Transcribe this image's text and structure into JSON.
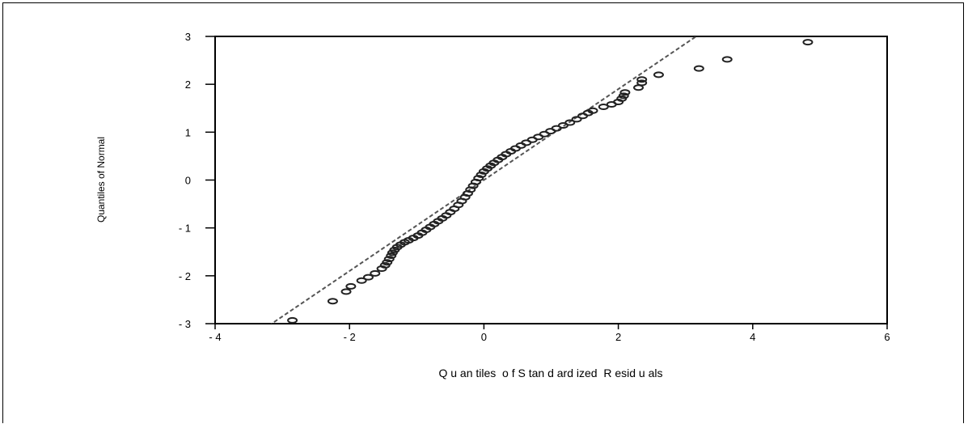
{
  "chart_data": {
    "type": "scatter",
    "title": "",
    "xlabel": "Q u an tiles  o f S tan d ard ized  R esid u als",
    "ylabel": "Quantiles of Normal",
    "xlim": [
      -4,
      6
    ],
    "ylim": [
      -3,
      3
    ],
    "x_ticks": [
      -4,
      -2,
      0,
      2,
      4,
      6
    ],
    "x_tick_labels": [
      "- 4",
      "- 2",
      "0",
      "2",
      "4",
      "6"
    ],
    "y_ticks": [
      -3,
      -2,
      -1,
      0,
      1,
      2,
      3
    ],
    "y_tick_labels": [
      "- 3",
      "- 2",
      "- 1",
      "0",
      "1",
      "2",
      "3"
    ],
    "grid": false,
    "legend": "none",
    "point_color": "#222222",
    "line_color": "#555555",
    "reference_line": {
      "slope": 0.95,
      "intercept": 0.0,
      "style": "dashed"
    },
    "points": [
      [
        -2.85,
        -2.93
      ],
      [
        -2.25,
        -2.53
      ],
      [
        -2.05,
        -2.33
      ],
      [
        -1.98,
        -2.22
      ],
      [
        -1.82,
        -2.1
      ],
      [
        -1.72,
        -2.03
      ],
      [
        -1.62,
        -1.95
      ],
      [
        -1.52,
        -1.85
      ],
      [
        -1.47,
        -1.78
      ],
      [
        -1.44,
        -1.72
      ],
      [
        -1.41,
        -1.65
      ],
      [
        -1.38,
        -1.58
      ],
      [
        -1.36,
        -1.52
      ],
      [
        -1.33,
        -1.46
      ],
      [
        -1.29,
        -1.4
      ],
      [
        -1.24,
        -1.35
      ],
      [
        -1.18,
        -1.3
      ],
      [
        -1.12,
        -1.26
      ],
      [
        -1.05,
        -1.21
      ],
      [
        -0.98,
        -1.16
      ],
      [
        -0.92,
        -1.1
      ],
      [
        -0.86,
        -1.04
      ],
      [
        -0.8,
        -0.98
      ],
      [
        -0.74,
        -0.92
      ],
      [
        -0.68,
        -0.86
      ],
      [
        -0.62,
        -0.8
      ],
      [
        -0.56,
        -0.74
      ],
      [
        -0.5,
        -0.67
      ],
      [
        -0.44,
        -0.6
      ],
      [
        -0.38,
        -0.52
      ],
      [
        -0.33,
        -0.44
      ],
      [
        -0.28,
        -0.36
      ],
      [
        -0.24,
        -0.28
      ],
      [
        -0.2,
        -0.2
      ],
      [
        -0.16,
        -0.12
      ],
      [
        -0.12,
        -0.04
      ],
      [
        -0.08,
        0.04
      ],
      [
        -0.04,
        0.11
      ],
      [
        0.0,
        0.18
      ],
      [
        0.05,
        0.24
      ],
      [
        0.1,
        0.3
      ],
      [
        0.15,
        0.36
      ],
      [
        0.21,
        0.42
      ],
      [
        0.27,
        0.48
      ],
      [
        0.33,
        0.54
      ],
      [
        0.4,
        0.6
      ],
      [
        0.47,
        0.66
      ],
      [
        0.55,
        0.72
      ],
      [
        0.63,
        0.78
      ],
      [
        0.72,
        0.84
      ],
      [
        0.81,
        0.9
      ],
      [
        0.9,
        0.96
      ],
      [
        0.99,
        1.02
      ],
      [
        1.08,
        1.08
      ],
      [
        1.18,
        1.14
      ],
      [
        1.28,
        1.2
      ],
      [
        1.38,
        1.27
      ],
      [
        1.47,
        1.34
      ],
      [
        1.55,
        1.4
      ],
      [
        1.62,
        1.45
      ],
      [
        1.78,
        1.53
      ],
      [
        1.9,
        1.58
      ],
      [
        2.0,
        1.63
      ],
      [
        2.05,
        1.7
      ],
      [
        2.08,
        1.76
      ],
      [
        2.1,
        1.83
      ],
      [
        2.3,
        1.93
      ],
      [
        2.35,
        2.03
      ],
      [
        2.35,
        2.1
      ],
      [
        2.6,
        2.2
      ],
      [
        3.2,
        2.33
      ],
      [
        3.62,
        2.52
      ],
      [
        4.82,
        2.88
      ]
    ]
  }
}
